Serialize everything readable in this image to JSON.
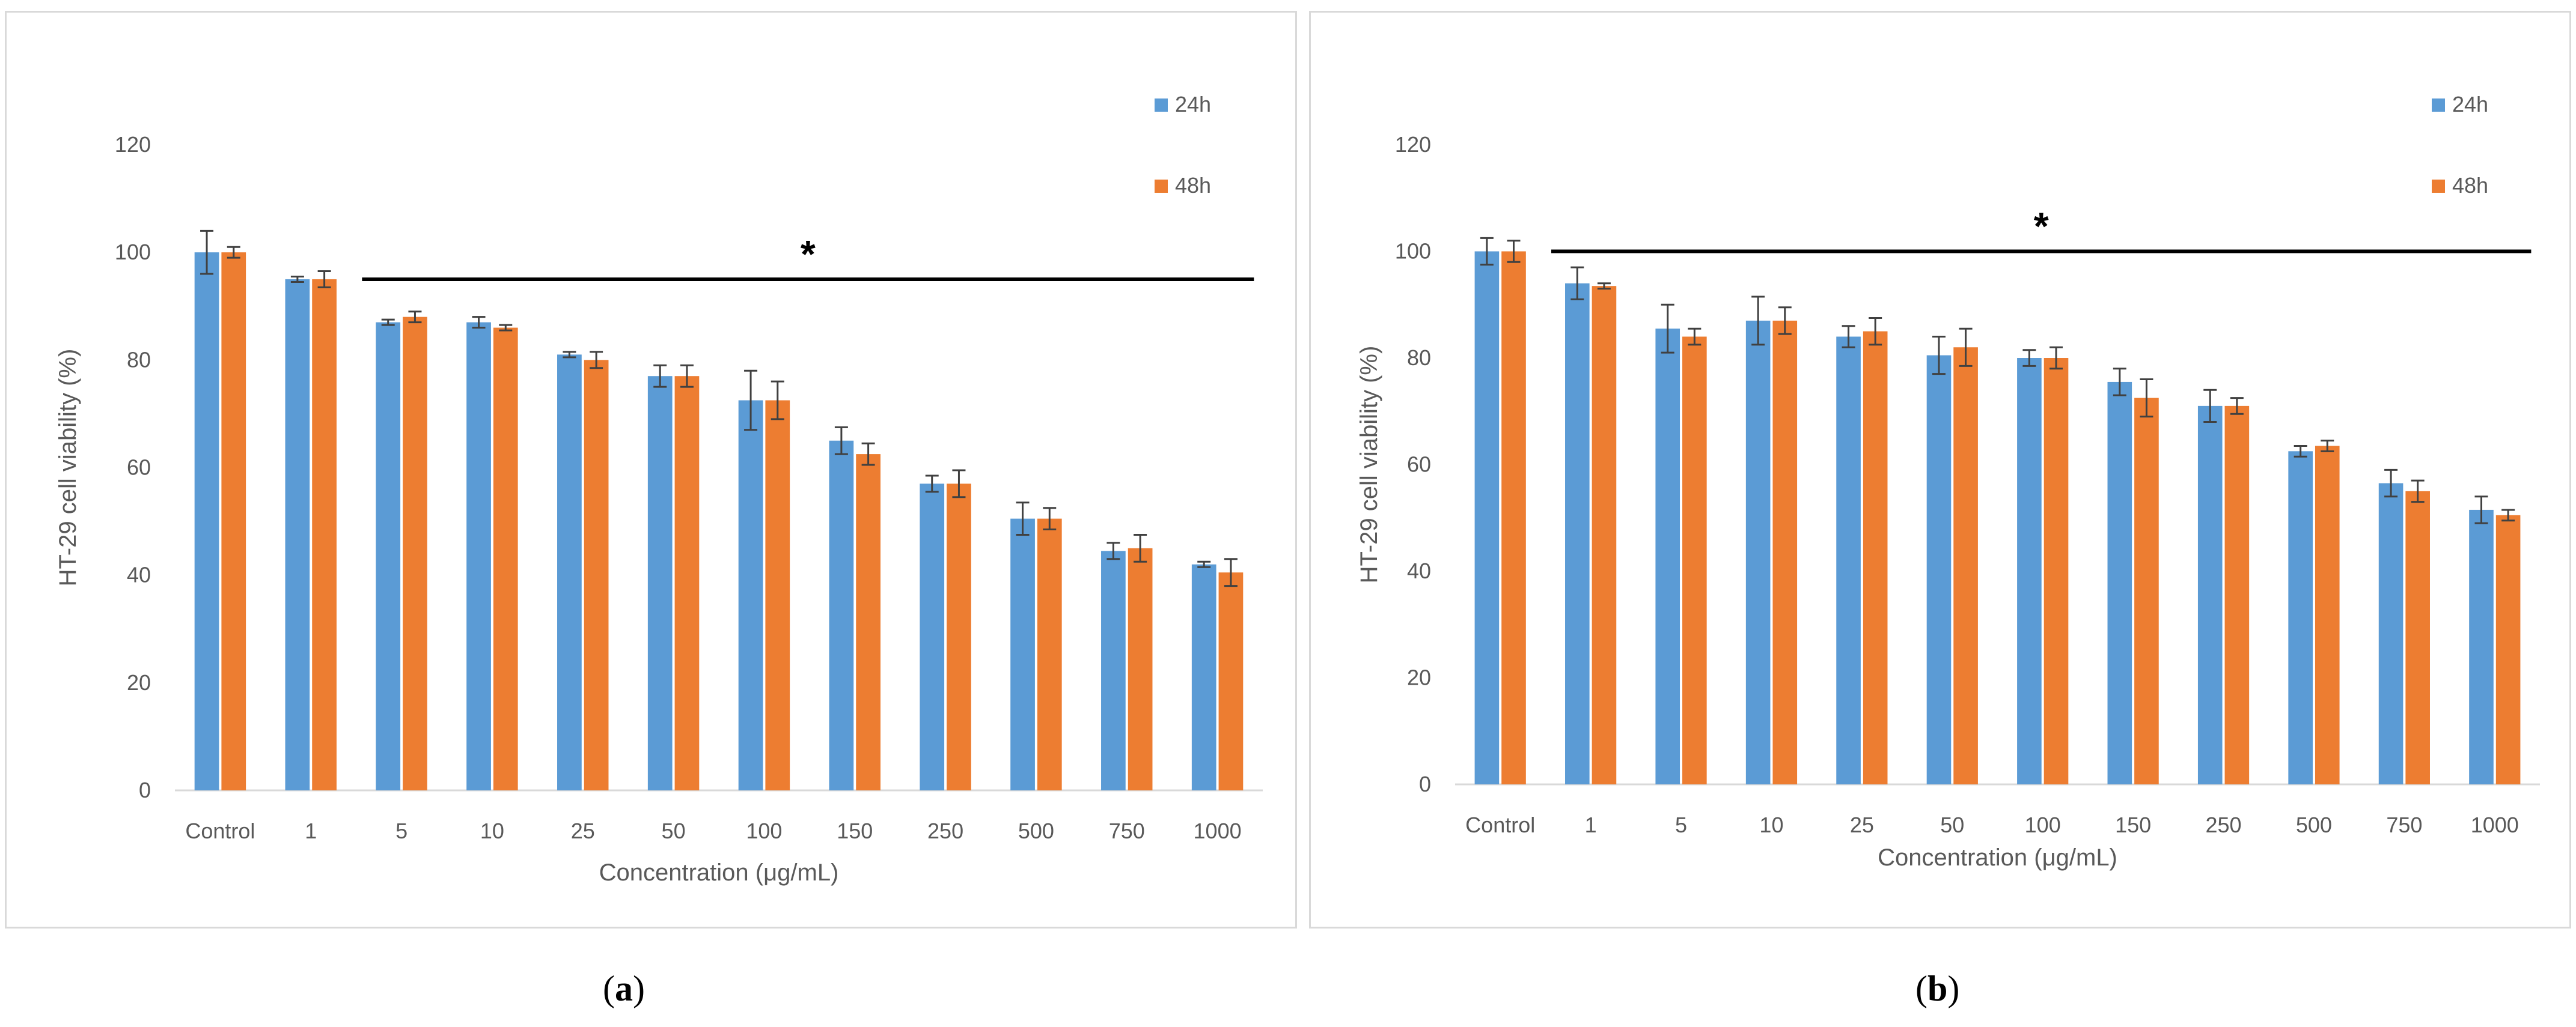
{
  "colors": {
    "series_24h": "#5b9bd5",
    "series_48h": "#ed7d31",
    "axis": "#d9d9d9",
    "text": "#595959",
    "error": "#404040"
  },
  "captions": {
    "a_open": "(",
    "a_letter": "a",
    "a_close": ")",
    "b_open": "(",
    "b_letter": "b",
    "b_close": ")"
  },
  "chart_data": [
    {
      "type": "bar",
      "panel": "a",
      "categories": [
        "Control",
        "1",
        "5",
        "10",
        "25",
        "50",
        "100",
        "150",
        "250",
        "500",
        "750",
        "1000"
      ],
      "series": [
        {
          "name": "24h",
          "values": [
            100,
            95,
            87,
            87,
            81,
            77,
            72.5,
            65,
            57,
            50.5,
            44.5,
            42
          ],
          "errors": [
            4,
            0.5,
            0.5,
            1,
            0.5,
            2,
            5.5,
            2.5,
            1.5,
            3,
            1.5,
            0.5
          ]
        },
        {
          "name": "48h",
          "values": [
            100,
            95,
            88,
            86,
            80,
            77,
            72.5,
            62.5,
            57,
            50.5,
            45,
            40.5
          ],
          "errors": [
            1,
            1.5,
            1,
            0.5,
            1.5,
            2,
            3.5,
            2,
            2.5,
            2,
            2.5,
            2.5
          ]
        }
      ],
      "ylim": [
        0,
        120
      ],
      "yticks": [
        "0",
        "20",
        "40",
        "60",
        "80",
        "100",
        "120"
      ],
      "xlabel": "Concentration (μg/mL)",
      "ylabel": "HT-29 cell viability (%)",
      "significance": {
        "label": "*",
        "from_category": "5",
        "to_category": "1000",
        "y": 95
      },
      "legend": [
        "24h",
        "48h"
      ]
    },
    {
      "type": "bar",
      "panel": "b",
      "categories": [
        "Control",
        "1",
        "5",
        "10",
        "25",
        "50",
        "100",
        "150",
        "250",
        "500",
        "750",
        "1000"
      ],
      "series": [
        {
          "name": "24h",
          "values": [
            100,
            94,
            85.5,
            87,
            84,
            80.5,
            80,
            75.5,
            71,
            62.5,
            56.5,
            51.5
          ],
          "errors": [
            2.5,
            3,
            4.5,
            4.5,
            2,
            3.5,
            1.5,
            2.5,
            3,
            1,
            2.5,
            2.5
          ]
        },
        {
          "name": "48h",
          "values": [
            100,
            93.5,
            84,
            87,
            85,
            82,
            80,
            72.5,
            71,
            63.5,
            55,
            50.5
          ],
          "errors": [
            2,
            0.5,
            1.5,
            2.5,
            2.5,
            3.5,
            2,
            3.5,
            1.5,
            1,
            2,
            1
          ]
        }
      ],
      "ylim": [
        0,
        120
      ],
      "yticks": [
        "0",
        "20",
        "40",
        "60",
        "80",
        "100",
        "120"
      ],
      "xlabel": "Concentration (μg/mL)",
      "ylabel": "HT-29 cell viability (%)",
      "significance": {
        "label": "*",
        "from_category": "1",
        "to_category": "1000",
        "y": 100
      },
      "legend": [
        "24h",
        "48h"
      ]
    }
  ]
}
